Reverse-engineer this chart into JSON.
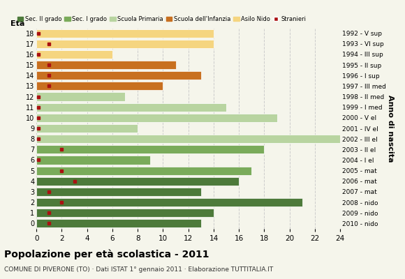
{
  "ages": [
    18,
    17,
    16,
    15,
    14,
    13,
    12,
    11,
    10,
    9,
    8,
    7,
    6,
    5,
    4,
    3,
    2,
    1,
    0
  ],
  "years": [
    "1992 - V sup",
    "1993 - VI sup",
    "1994 - III sup",
    "1995 - II sup",
    "1996 - I sup",
    "1997 - III med",
    "1998 - II med",
    "1999 - I med",
    "2000 - V el",
    "2001 - IV el",
    "2002 - III el",
    "2003 - II el",
    "2004 - I el",
    "2005 - mat",
    "2006 - mat",
    "2007 - mat",
    "2008 - nido",
    "2009 - nido",
    "2010 - nido"
  ],
  "values": [
    13,
    14,
    21,
    13,
    16,
    17,
    9,
    18,
    24,
    8,
    19,
    15,
    7,
    10,
    13,
    11,
    6,
    14,
    14
  ],
  "stranieri": [
    1,
    1,
    2,
    1,
    3,
    2,
    0,
    2,
    0,
    0,
    0,
    0,
    0,
    1,
    1,
    1,
    0,
    1,
    0
  ],
  "bar_colors": [
    "#4d7a3a",
    "#4d7a3a",
    "#4d7a3a",
    "#4d7a3a",
    "#4d7a3a",
    "#7aab5a",
    "#7aab5a",
    "#7aab5a",
    "#b8d4a0",
    "#b8d4a0",
    "#b8d4a0",
    "#b8d4a0",
    "#b8d4a0",
    "#c87020",
    "#c87020",
    "#c87020",
    "#f5d580",
    "#f5d580",
    "#f5d580"
  ],
  "color_sec2": "#4d7a3a",
  "color_sec1": "#7aab5a",
  "color_prim": "#b8d4a0",
  "color_inf": "#c87020",
  "color_nido": "#f5d580",
  "color_stranieri": "#aa1111",
  "xlim": [
    0,
    24
  ],
  "xticks": [
    0,
    2,
    4,
    6,
    8,
    10,
    12,
    14,
    16,
    18,
    20,
    22,
    24
  ],
  "title": "Popolazione per età scolastica - 2011",
  "subtitle": "COMUNE DI PIVERONE (TO) · Dati ISTAT 1° gennaio 2011 · Elaborazione TUTTITALIA.IT",
  "ylabel_left": "Età",
  "ylabel_right": "Anno di nascita",
  "legend_labels": [
    "Sec. II grado",
    "Sec. I grado",
    "Scuola Primaria",
    "Scuola dell'Infanzia",
    "Asilo Nido",
    "Stranieri"
  ],
  "background_color": "#f5f5eb"
}
